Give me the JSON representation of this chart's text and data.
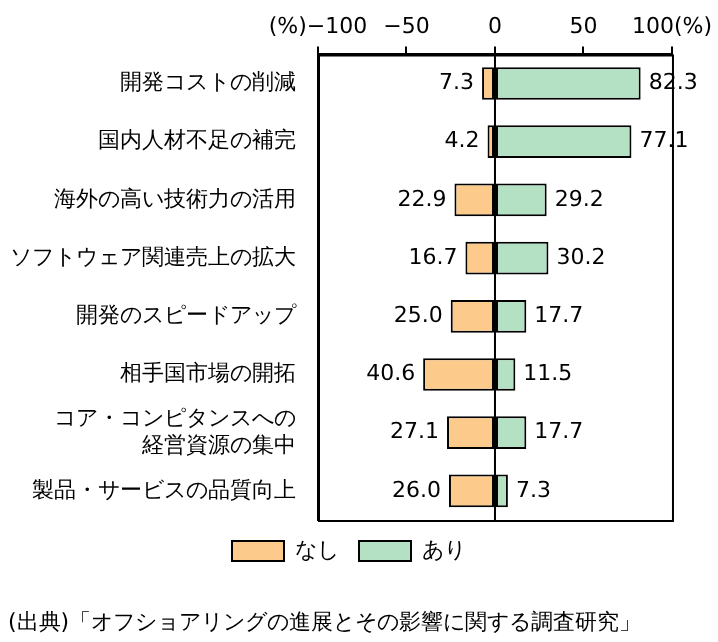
{
  "chart_data": {
    "type": "bar",
    "orientation": "horizontal",
    "categories": [
      "開発コストの削減",
      "国内人材不足の補完",
      "海外の高い技術力の活用",
      "ソフトウェア関連売上の拡大",
      "開発のスピードアップ",
      "相手国市場の開拓",
      "コア・コンピタンスへの経営資源の集中",
      "製品・サービスの品質向上"
    ],
    "series": [
      {
        "name": "なし",
        "color": "#fccb8c",
        "values": [
          7.3,
          4.2,
          22.9,
          16.7,
          25.0,
          40.6,
          27.1,
          26.0
        ],
        "base": [
          -7.3,
          -4.2,
          -22.9,
          -16.7,
          -25.0,
          -40.6,
          -27.1,
          -26.0
        ],
        "value_labels": [
          "7.3",
          "4.2",
          "22.9",
          "16.7",
          "25.0",
          "40.6",
          "27.1",
          "26.0"
        ]
      },
      {
        "name": "あり",
        "color": "#b4e0c4",
        "values": [
          82.3,
          77.1,
          29.2,
          30.2,
          17.7,
          11.5,
          17.7,
          7.3
        ],
        "value_labels": [
          "82.3",
          "77.1",
          "29.2",
          "30.2",
          "17.7",
          "11.5",
          "17.7",
          "7.3"
        ]
      }
    ],
    "xlim": [
      -100,
      100
    ],
    "xticks": [
      {
        "value": -100,
        "label": "(%)−100"
      },
      {
        "value": -50,
        "label": "−50"
      },
      0,
      50,
      {
        "value": 100,
        "label": "100(%)"
      }
    ],
    "grid": false,
    "legend": "bottom",
    "ref_lines": [
      {
        "axis": "x",
        "value": 0
      }
    ],
    "annotations": [
      "(出典)「オフショアリングの進展とその影響に関する調査研究」"
    ]
  }
}
